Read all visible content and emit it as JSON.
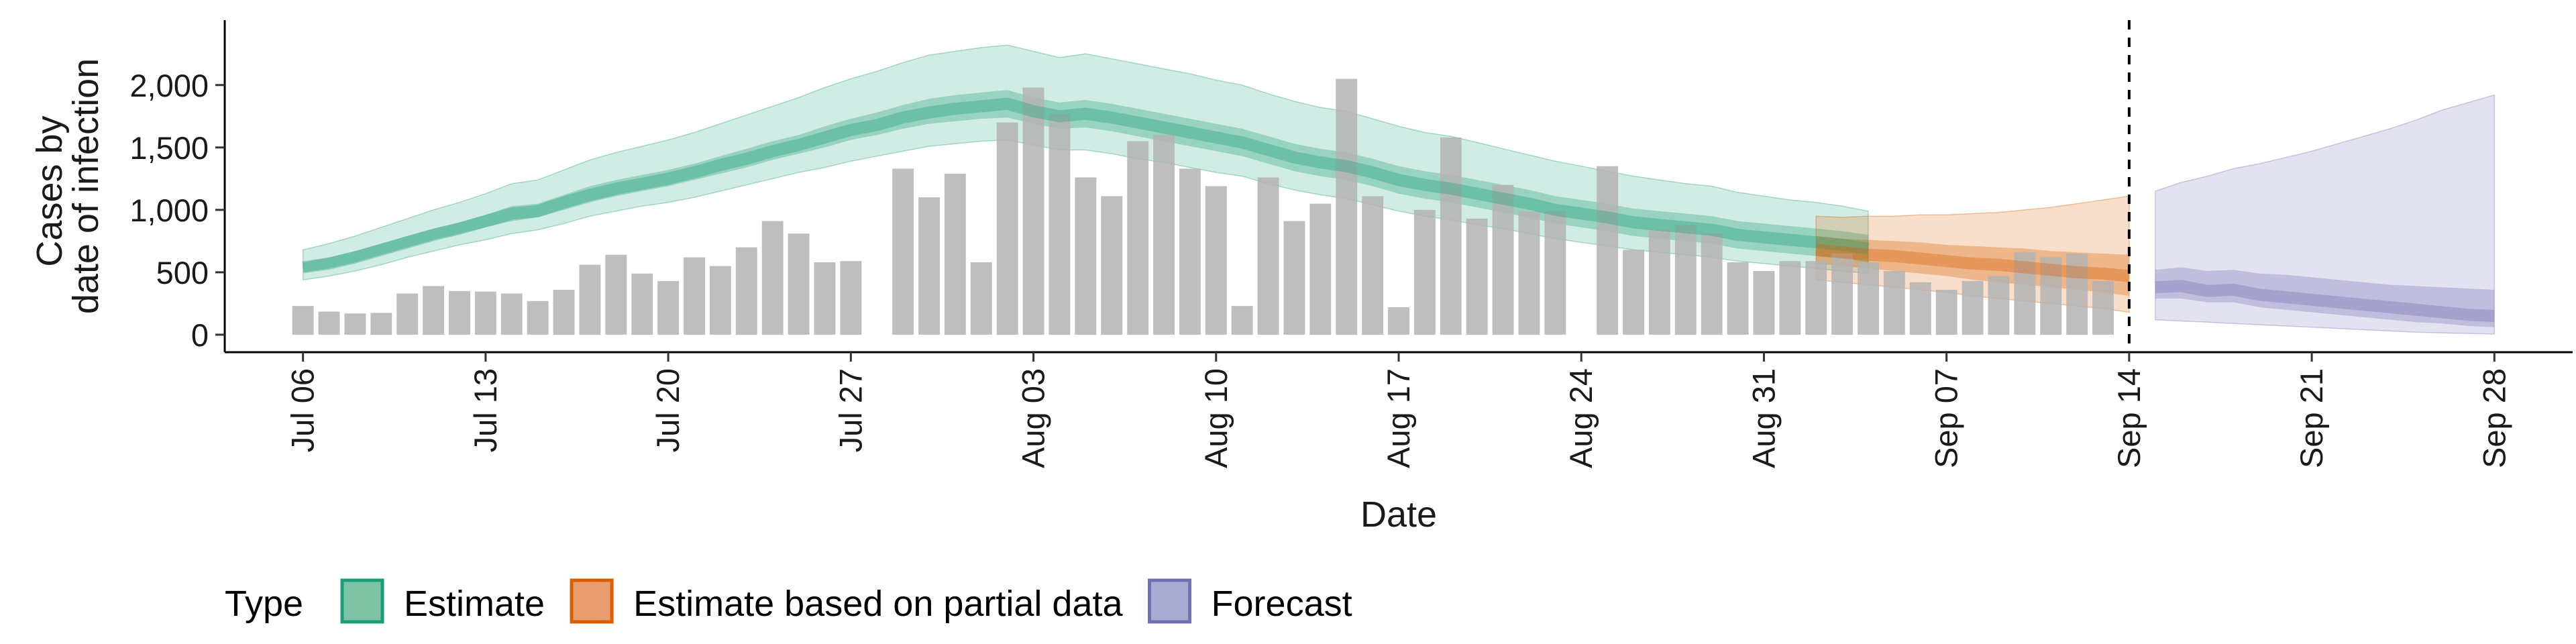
{
  "chart_data": {
    "type": "bar",
    "title": "",
    "xlabel": "Date",
    "ylabel_lines": [
      "Cases by",
      "date of infection"
    ],
    "ylim": [
      -140,
      2520
    ],
    "y_ticks": [
      0,
      500,
      1000,
      1500,
      2000
    ],
    "y_tick_labels": [
      "0",
      "500",
      "1,000",
      "1,500",
      "2,000"
    ],
    "x_domain": [
      "2020-07-03",
      "2020-10-01"
    ],
    "x_ticks": [
      "2020-07-06",
      "2020-07-13",
      "2020-07-20",
      "2020-07-27",
      "2020-08-03",
      "2020-08-10",
      "2020-08-17",
      "2020-08-24",
      "2020-08-31",
      "2020-09-07",
      "2020-09-14",
      "2020-09-21",
      "2020-09-28"
    ],
    "x_tick_labels": [
      "Jul 06",
      "Jul 13",
      "Jul 20",
      "Jul 27",
      "Aug 03",
      "Aug 10",
      "Aug 17",
      "Aug 24",
      "Aug 31",
      "Sep 07",
      "Sep 14",
      "Sep 21",
      "Sep 28"
    ],
    "vline_date": "2020-09-14",
    "grid": false,
    "legend_position": "bottom",
    "legend_title": "Type",
    "legend": [
      {
        "name": "Estimate",
        "fill": "#7fc4a7",
        "stroke": "#1b9e77"
      },
      {
        "name": "Estimate based on partial data",
        "fill": "#e89e6e",
        "stroke": "#d95f02"
      },
      {
        "name": "Forecast",
        "fill": "#aaaad2",
        "stroke": "#7570b3"
      }
    ],
    "bars": {
      "color": "#b3b3b3",
      "start_date": "2020-07-06",
      "values": [
        230,
        185,
        170,
        175,
        330,
        390,
        350,
        345,
        330,
        270,
        360,
        560,
        640,
        490,
        430,
        620,
        550,
        700,
        910,
        810,
        580,
        590,
        null,
        1330,
        1100,
        1290,
        580,
        1700,
        1980,
        1770,
        1260,
        1110,
        1550,
        1600,
        1330,
        1190,
        230,
        1260,
        910,
        1050,
        2050,
        1110,
        220,
        1000,
        1580,
        930,
        1200,
        990,
        990,
        null,
        1350,
        680,
        840,
        880,
        810,
        580,
        510,
        590,
        590,
        650,
        580,
        510,
        420,
        360,
        430,
        470,
        660,
        620,
        650,
        430
      ]
    },
    "series": [
      {
        "name": "Estimate",
        "color": "#1b9e77",
        "start_date": "2020-07-06",
        "median": [
          540,
          570,
          620,
          680,
          740,
          800,
          850,
          910,
          970,
          990,
          1060,
          1120,
          1170,
          1210,
          1250,
          1300,
          1360,
          1410,
          1470,
          1520,
          1580,
          1640,
          1680,
          1740,
          1780,
          1810,
          1830,
          1850,
          1790,
          1750,
          1770,
          1740,
          1700,
          1660,
          1620,
          1580,
          1540,
          1480,
          1420,
          1380,
          1350,
          1300,
          1240,
          1200,
          1170,
          1130,
          1090,
          1050,
          1000,
          970,
          940,
          900,
          880,
          860,
          840,
          800,
          780,
          760,
          740,
          720,
          690
        ],
        "inner_lower": [
          500,
          530,
          580,
          640,
          700,
          760,
          810,
          860,
          910,
          940,
          1000,
          1060,
          1110,
          1150,
          1190,
          1240,
          1290,
          1340,
          1400,
          1450,
          1500,
          1560,
          1600,
          1650,
          1690,
          1710,
          1730,
          1740,
          1690,
          1650,
          1660,
          1630,
          1590,
          1550,
          1510,
          1470,
          1430,
          1370,
          1310,
          1270,
          1240,
          1190,
          1130,
          1090,
          1060,
          1020,
          980,
          940,
          890,
          860,
          830,
          790,
          770,
          750,
          730,
          690,
          670,
          650,
          630,
          610,
          580
        ],
        "inner_upper": [
          580,
          620,
          670,
          730,
          790,
          850,
          900,
          960,
          1030,
          1050,
          1120,
          1190,
          1240,
          1280,
          1320,
          1370,
          1430,
          1490,
          1550,
          1600,
          1670,
          1730,
          1780,
          1840,
          1890,
          1920,
          1940,
          1960,
          1900,
          1860,
          1880,
          1850,
          1810,
          1770,
          1730,
          1690,
          1650,
          1590,
          1530,
          1490,
          1460,
          1410,
          1350,
          1310,
          1280,
          1240,
          1200,
          1160,
          1110,
          1080,
          1050,
          1010,
          990,
          970,
          950,
          910,
          890,
          870,
          850,
          830,
          800
        ],
        "outer_lower": [
          440,
          470,
          510,
          560,
          620,
          670,
          720,
          760,
          810,
          840,
          890,
          950,
          990,
          1030,
          1060,
          1100,
          1150,
          1200,
          1250,
          1300,
          1340,
          1390,
          1430,
          1470,
          1510,
          1530,
          1550,
          1560,
          1520,
          1480,
          1480,
          1450,
          1410,
          1380,
          1340,
          1300,
          1270,
          1210,
          1160,
          1120,
          1090,
          1040,
          990,
          950,
          920,
          880,
          850,
          810,
          770,
          740,
          710,
          680,
          660,
          640,
          620,
          590,
          570,
          550,
          530,
          510,
          490
        ],
        "outer_upper": [
          680,
          730,
          790,
          860,
          930,
          1000,
          1060,
          1130,
          1210,
          1240,
          1320,
          1400,
          1460,
          1510,
          1560,
          1620,
          1690,
          1760,
          1830,
          1900,
          1980,
          2050,
          2110,
          2180,
          2240,
          2270,
          2300,
          2320,
          2270,
          2220,
          2250,
          2210,
          2170,
          2130,
          2090,
          2040,
          2000,
          1930,
          1870,
          1820,
          1790,
          1730,
          1670,
          1620,
          1590,
          1540,
          1490,
          1440,
          1390,
          1350,
          1310,
          1270,
          1240,
          1210,
          1190,
          1140,
          1110,
          1080,
          1060,
          1030,
          990
        ]
      },
      {
        "name": "Estimate based on partial data",
        "color": "#d95f02",
        "start_date": "2020-09-02",
        "median": [
          680,
          660,
          640,
          630,
          610,
          590,
          570,
          560,
          540,
          520,
          500,
          490,
          470
        ],
        "inner_lower": [
          570,
          550,
          530,
          510,
          490,
          470,
          440,
          420,
          400,
          380,
          360,
          340,
          310
        ],
        "inner_upper": [
          790,
          770,
          760,
          750,
          740,
          720,
          710,
          700,
          690,
          670,
          660,
          650,
          640
        ],
        "outer_lower": [
          440,
          420,
          400,
          380,
          360,
          340,
          310,
          290,
          270,
          250,
          230,
          210,
          180
        ],
        "outer_upper": [
          950,
          940,
          950,
          950,
          960,
          960,
          970,
          980,
          1000,
          1020,
          1050,
          1080,
          1110
        ]
      },
      {
        "name": "Forecast",
        "color": "#7570b3",
        "start_date": "2020-09-15",
        "median": [
          380,
          390,
          350,
          360,
          320,
          300,
          280,
          260,
          240,
          220,
          200,
          180,
          160,
          150
        ],
        "inner_lower": [
          290,
          290,
          260,
          260,
          220,
          200,
          180,
          160,
          140,
          120,
          100,
          90,
          70,
          60
        ],
        "inner_upper": [
          520,
          540,
          510,
          520,
          490,
          480,
          460,
          440,
          420,
          400,
          390,
          380,
          370,
          360
        ],
        "outer_lower": [
          120,
          110,
          100,
          90,
          80,
          70,
          60,
          50,
          40,
          30,
          20,
          15,
          10,
          5
        ],
        "outer_upper": [
          1150,
          1220,
          1270,
          1330,
          1370,
          1420,
          1470,
          1530,
          1590,
          1650,
          1720,
          1800,
          1860,
          1920
        ]
      }
    ]
  }
}
